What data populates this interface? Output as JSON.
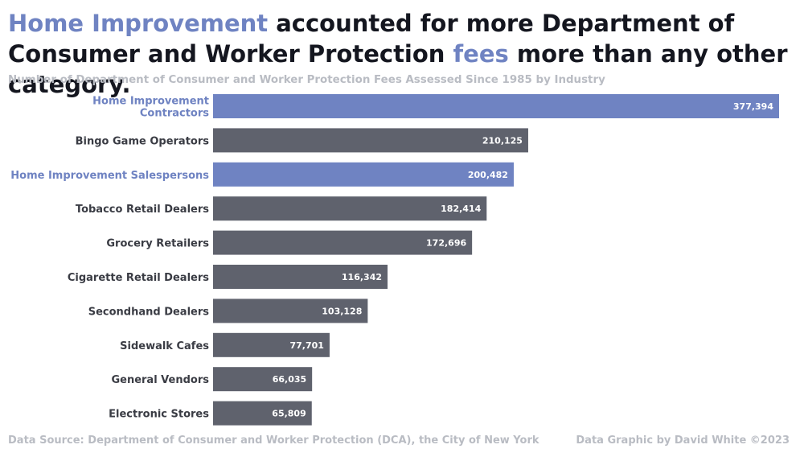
{
  "title": {
    "part1": "Home Improvement",
    "part2": " accounted for more Department of Consumer and Worker Protection ",
    "part3": "fees",
    "part4": " more than any other category."
  },
  "subtitle": "Number of Department of Consumer and Worker Protection Fees Assessed Since 1985 by Industry",
  "footer": {
    "source": "Data Source: Department of Consumer and Worker Protection (DCA), the City of New York",
    "credit": "Data Graphic by David White ©2023"
  },
  "colors": {
    "highlight": "#6f83c2",
    "default_bar": "#5f626d",
    "label_default": "#3a3c44",
    "value_text": "#ffffff"
  },
  "chart_data": {
    "type": "bar",
    "orientation": "horizontal",
    "title": "Number of Department of Consumer and Worker Protection Fees Assessed Since 1985 by Industry",
    "xlabel": "",
    "ylabel": "",
    "xlim": [
      0,
      377394
    ],
    "grid": false,
    "categories": [
      [
        "Home Improvement",
        "Contractors"
      ],
      [
        "Bingo Game Operators"
      ],
      [
        "Home Improvement Salespersons"
      ],
      [
        "Tobacco Retail Dealers"
      ],
      [
        "Grocery Retailers"
      ],
      [
        "Cigarette Retail Dealers"
      ],
      [
        "Secondhand Dealers"
      ],
      [
        "Sidewalk Cafes"
      ],
      [
        "General Vendors"
      ],
      [
        "Electronic Stores"
      ]
    ],
    "values": [
      377394,
      210125,
      200482,
      182414,
      172696,
      116342,
      103128,
      77701,
      66035,
      65809
    ],
    "value_labels": [
      "377,394",
      "210,125",
      "200,482",
      "182,414",
      "172,696",
      "116,342",
      "103,128",
      "77,701",
      "66,035",
      "65,809"
    ],
    "highlighted": [
      true,
      false,
      true,
      false,
      false,
      false,
      false,
      false,
      false,
      false
    ]
  }
}
